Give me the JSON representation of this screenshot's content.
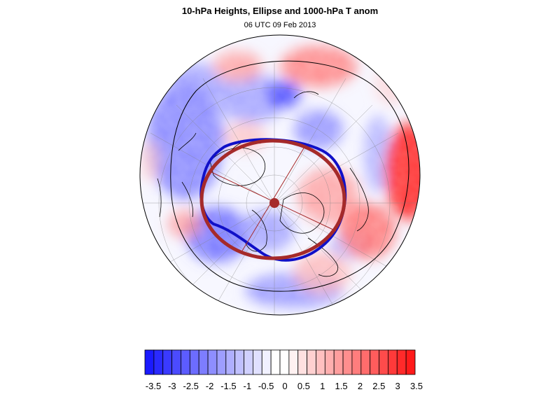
{
  "header": {
    "title": "10-hPa Heights, Ellipse and 1000-hPa T anom",
    "subtitle": "06 UTC 09 Feb 2013"
  },
  "colors": {
    "negative_max": "#1a1aff",
    "positive_max": "#ff1a1a",
    "ellipse": "#a52a2a",
    "height_contour": "#1010c8",
    "coastline": "#000000"
  },
  "colorbar": {
    "tick_labels": [
      "-3.5",
      "-3",
      "-2.5",
      "-2",
      "-1.5",
      "-1",
      "-0.5",
      "0",
      "0.5",
      "1",
      "1.5",
      "2",
      "2.5",
      "3",
      "3.5"
    ],
    "levels": [
      -3.5,
      -3.25,
      -3,
      -2.75,
      -2.5,
      -2.25,
      -2,
      -1.75,
      -1.5,
      -1.25,
      -1,
      -0.75,
      -0.5,
      -0.25,
      0,
      0.25,
      0.5,
      0.75,
      1,
      1.25,
      1.5,
      1.75,
      2,
      2.25,
      2.5,
      2.75,
      3,
      3.25,
      3.5
    ],
    "colors": [
      "#1a1aff",
      "#2a2aff",
      "#3a3aff",
      "#4b4bff",
      "#5c5cff",
      "#6c6cff",
      "#7d7dff",
      "#8e8eff",
      "#9e9eff",
      "#afafff",
      "#c0c0ff",
      "#d0d0ff",
      "#e0e0ff",
      "#f1f1ff",
      "#ffffff",
      "#ffffff",
      "#fff1f1",
      "#ffe0e0",
      "#ffd0d0",
      "#ffc0c0",
      "#ffafaf",
      "#ff9e9e",
      "#ff8e8e",
      "#ff7d7d",
      "#ff6c6c",
      "#ff5c5c",
      "#ff4b4b",
      "#ff3a3a",
      "#ff2a2a",
      "#ff1a1a"
    ]
  }
}
